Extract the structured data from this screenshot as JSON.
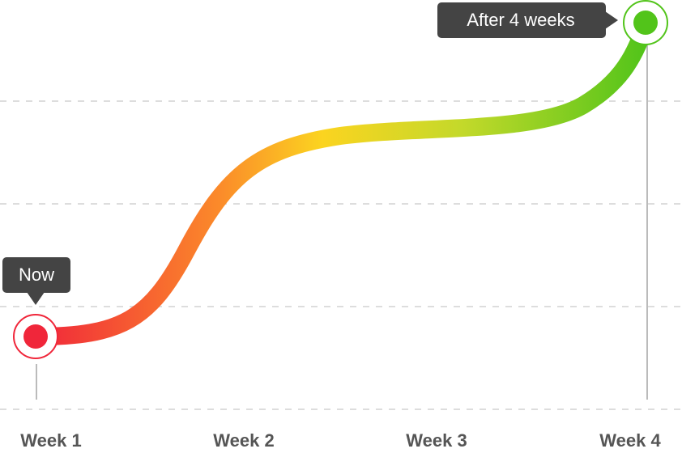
{
  "axis": {
    "labels": [
      "Week 1",
      "Week 2",
      "Week 3",
      "Week 4"
    ]
  },
  "callouts": {
    "start": "Now",
    "end": "After 4 weeks"
  }
}
